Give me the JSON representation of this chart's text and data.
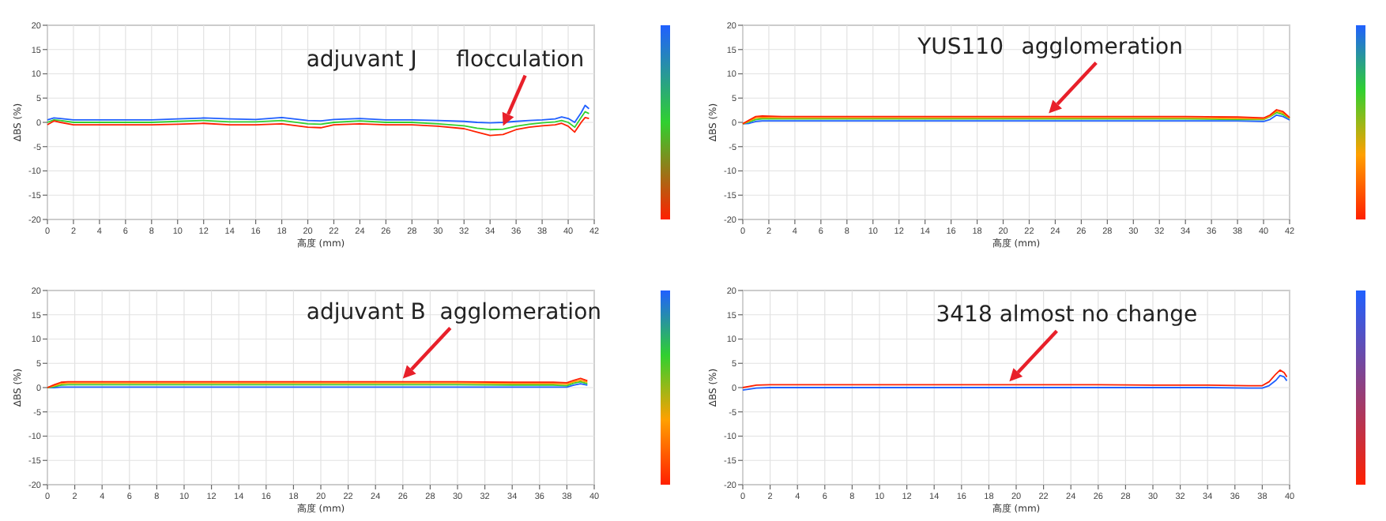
{
  "chart_data": [
    {
      "type": "line",
      "xlabel": "高度 (mm)",
      "ylabel": "ΔBS (%)",
      "xlim": [
        0,
        42
      ],
      "ylim": [
        -20,
        20
      ],
      "xticks": [
        0,
        2,
        4,
        6,
        8,
        10,
        12,
        14,
        16,
        18,
        20,
        22,
        24,
        26,
        28,
        30,
        32,
        34,
        36,
        38,
        40,
        42
      ],
      "yticks": [
        -20,
        -15,
        -10,
        -5,
        0,
        5,
        10,
        15,
        20
      ],
      "grid": true,
      "marker": "none",
      "line_style": "solid",
      "annotations": [
        "adjuvant J",
        {
          "text": "flocculation",
          "x": 35,
          "y": -1.4
        }
      ],
      "x": [
        0,
        0.5,
        1,
        2,
        4,
        6,
        8,
        10,
        12,
        14,
        16,
        18,
        20,
        21,
        22,
        24,
        26,
        28,
        30,
        32,
        33,
        34,
        35,
        36,
        37,
        38,
        39,
        39.5,
        40,
        40.5,
        41,
        41.3,
        41.6
      ],
      "series": [
        {
          "color": "#ff2000",
          "values": [
            -0.5,
            0.3,
            0,
            -0.5,
            -0.5,
            -0.5,
            -0.5,
            -0.4,
            -0.2,
            -0.5,
            -0.5,
            -0.3,
            -1,
            -1.1,
            -0.5,
            -0.3,
            -0.5,
            -0.5,
            -0.8,
            -1.3,
            -2,
            -2.7,
            -2.5,
            -1.5,
            -1,
            -0.7,
            -0.5,
            -0.2,
            -0.8,
            -2,
            0,
            1,
            0.8
          ]
        },
        {
          "color": "#30d030",
          "values": [
            0,
            0.5,
            0.4,
            0,
            0,
            0,
            0,
            0.2,
            0.4,
            0.1,
            0.1,
            0.4,
            -0.3,
            -0.4,
            0,
            0.3,
            0,
            0,
            -0.3,
            -0.7,
            -1.2,
            -1.5,
            -1.4,
            -0.8,
            -0.4,
            -0.1,
            0.1,
            0.4,
            0,
            -1,
            1,
            2.2,
            1.8
          ]
        },
        {
          "color": "#2060ff",
          "values": [
            0.5,
            0.9,
            0.8,
            0.5,
            0.5,
            0.5,
            0.5,
            0.7,
            0.9,
            0.7,
            0.6,
            1,
            0.4,
            0.3,
            0.6,
            0.8,
            0.5,
            0.5,
            0.4,
            0.2,
            0,
            -0.1,
            0,
            0.2,
            0.4,
            0.5,
            0.7,
            1.1,
            0.8,
            0,
            2,
            3.5,
            2.8
          ]
        }
      ]
    },
    {
      "type": "line",
      "xlabel": "高度 (mm)",
      "ylabel": "ΔBS (%)",
      "xlim": [
        0,
        42
      ],
      "ylim": [
        -20,
        20
      ],
      "xticks": [
        0,
        2,
        4,
        6,
        8,
        10,
        12,
        14,
        16,
        18,
        20,
        22,
        24,
        26,
        28,
        30,
        32,
        34,
        36,
        38,
        40,
        42
      ],
      "yticks": [
        -20,
        -15,
        -10,
        -5,
        0,
        5,
        10,
        15,
        20
      ],
      "grid": true,
      "marker": "none",
      "line_style": "solid",
      "annotations": [
        "YUS110",
        {
          "text": "agglomeration",
          "x": 23.5,
          "y": 1.2
        }
      ],
      "x": [
        0,
        0.5,
        1,
        1.5,
        3,
        6,
        10,
        14,
        18,
        22,
        26,
        30,
        34,
        38,
        40,
        40.5,
        41,
        41.5,
        42
      ],
      "series": [
        {
          "color": "#ff2000",
          "values": [
            -0.3,
            0.5,
            1.2,
            1.3,
            1.2,
            1.2,
            1.2,
            1.2,
            1.2,
            1.2,
            1.2,
            1.2,
            1.2,
            1.1,
            0.9,
            1.5,
            2.6,
            2.2,
            1
          ]
        },
        {
          "color": "#ffa000",
          "values": [
            -0.3,
            0.3,
            0.9,
            1,
            0.9,
            0.9,
            0.9,
            0.9,
            0.9,
            0.9,
            0.9,
            0.9,
            0.9,
            0.8,
            0.7,
            1.3,
            2.3,
            1.9,
            0.9
          ]
        },
        {
          "color": "#30d030",
          "values": [
            -0.3,
            0.1,
            0.6,
            0.7,
            0.7,
            0.7,
            0.7,
            0.7,
            0.7,
            0.7,
            0.7,
            0.7,
            0.7,
            0.6,
            0.6,
            1.2,
            2,
            1.6,
            0.8
          ]
        },
        {
          "color": "#2060ff",
          "values": [
            -0.3,
            -0.2,
            0.2,
            0.3,
            0.3,
            0.3,
            0.3,
            0.3,
            0.3,
            0.3,
            0.3,
            0.3,
            0.3,
            0.3,
            0.2,
            0.6,
            1.5,
            1.2,
            0.5
          ]
        }
      ]
    },
    {
      "type": "line",
      "xlabel": "高度 (mm)",
      "ylabel": "ΔBS (%)",
      "xlim": [
        0,
        40
      ],
      "ylim": [
        -20,
        20
      ],
      "xticks": [
        0,
        2,
        4,
        6,
        8,
        10,
        12,
        14,
        16,
        18,
        20,
        22,
        24,
        26,
        28,
        30,
        32,
        34,
        36,
        38,
        40
      ],
      "yticks": [
        -20,
        -15,
        -10,
        -5,
        0,
        5,
        10,
        15,
        20
      ],
      "grid": true,
      "marker": "none",
      "line_style": "solid",
      "annotations": [
        {
          "text": "adjuvant B  agglomeration",
          "x": 26,
          "y": 1.2
        }
      ],
      "x": [
        0,
        0.5,
        1,
        1.5,
        3,
        6,
        10,
        14,
        18,
        22,
        26,
        30,
        34,
        37,
        38,
        38.5,
        39,
        39.5
      ],
      "series": [
        {
          "color": "#ff2000",
          "values": [
            0,
            0.6,
            1.1,
            1.2,
            1.2,
            1.2,
            1.2,
            1.2,
            1.2,
            1.2,
            1.2,
            1.2,
            1.1,
            1.1,
            1,
            1.5,
            1.9,
            1.4
          ]
        },
        {
          "color": "#ffa000",
          "values": [
            0,
            0.4,
            0.8,
            0.9,
            0.9,
            0.9,
            0.9,
            0.9,
            0.9,
            0.9,
            0.9,
            0.9,
            0.8,
            0.8,
            0.7,
            1.2,
            1.5,
            1.1
          ]
        },
        {
          "color": "#30d030",
          "values": [
            0,
            0.2,
            0.5,
            0.6,
            0.6,
            0.6,
            0.6,
            0.6,
            0.6,
            0.6,
            0.6,
            0.6,
            0.5,
            0.5,
            0.4,
            0.9,
            1.2,
            0.8
          ]
        },
        {
          "color": "#2060ff",
          "values": [
            0,
            0,
            0.1,
            0.1,
            0.1,
            0.1,
            0.1,
            0.1,
            0.1,
            0.1,
            0.1,
            0.1,
            0.1,
            0.1,
            0.1,
            0.5,
            0.8,
            0.5
          ]
        }
      ]
    },
    {
      "type": "line",
      "xlabel": "高度 (mm)",
      "ylabel": "ΔBS (%)",
      "xlim": [
        0,
        40
      ],
      "ylim": [
        -20,
        20
      ],
      "xticks": [
        0,
        2,
        4,
        6,
        8,
        10,
        12,
        14,
        16,
        18,
        20,
        22,
        24,
        26,
        28,
        30,
        32,
        34,
        36,
        38,
        40
      ],
      "yticks": [
        -20,
        -15,
        -10,
        -5,
        0,
        5,
        10,
        15,
        20
      ],
      "grid": true,
      "marker": "none",
      "line_style": "solid",
      "annotations": [
        {
          "text": "3418 almost no change",
          "x": 19.5,
          "y": 0.6
        }
      ],
      "x": [
        0,
        1,
        2,
        6,
        10,
        14,
        18,
        22,
        26,
        30,
        34,
        37,
        38,
        38.5,
        39,
        39.3,
        39.6,
        39.8
      ],
      "series": [
        {
          "color": "#ff2000",
          "values": [
            0,
            0.5,
            0.6,
            0.6,
            0.6,
            0.6,
            0.6,
            0.6,
            0.6,
            0.5,
            0.5,
            0.4,
            0.4,
            1.2,
            2.8,
            3.6,
            3.1,
            2.2
          ]
        },
        {
          "color": "#2060ff",
          "values": [
            -0.5,
            -0.1,
            0,
            0,
            0,
            0,
            0,
            0,
            0,
            0,
            0,
            -0.1,
            -0.1,
            0.4,
            1.5,
            2.5,
            2.2,
            1.4
          ]
        }
      ]
    }
  ]
}
